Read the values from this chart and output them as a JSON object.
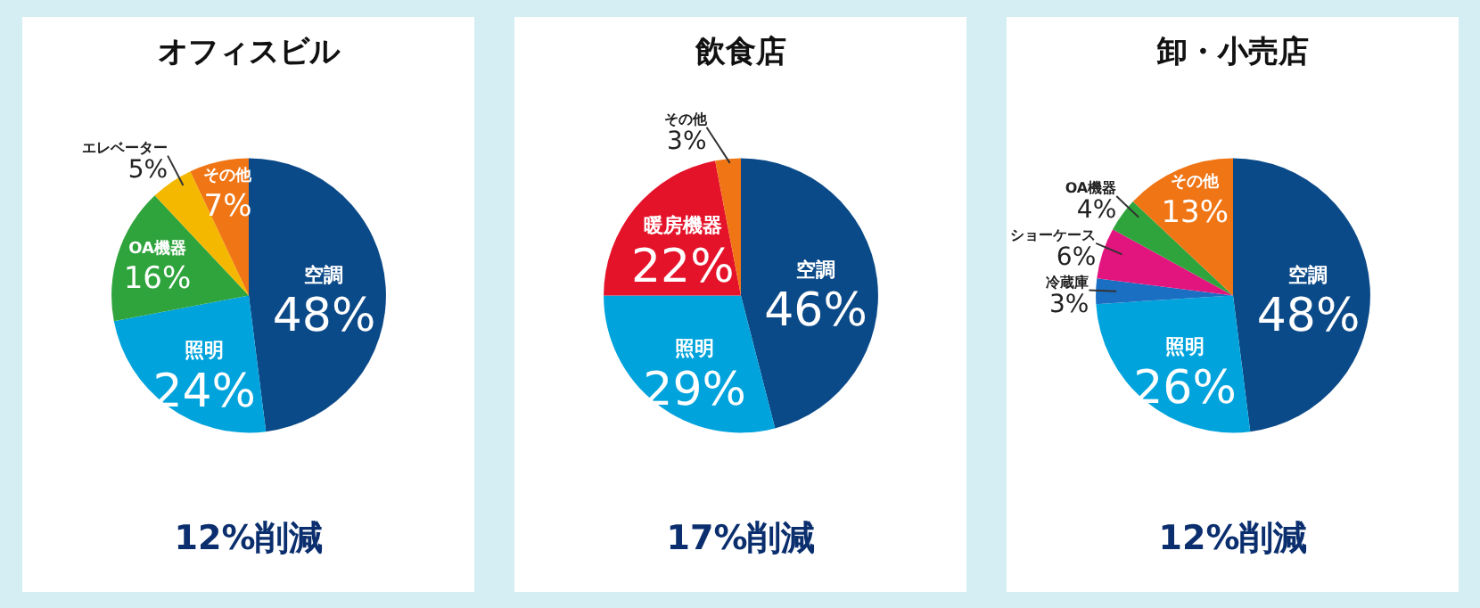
{
  "chart_data": [
    {
      "type": "pie",
      "title": "オフィスビル",
      "categories": [
        "空調",
        "照明",
        "OA機器",
        "エレベーター",
        "その他"
      ],
      "values": [
        48,
        24,
        16,
        5,
        7
      ],
      "colors": [
        "#0b4a88",
        "#00a3dc",
        "#2fa43c",
        "#f5b800",
        "#f07515"
      ],
      "value_labels": [
        "48%",
        "24%",
        "16%",
        "5%",
        "7%"
      ],
      "annotations": [
        "12%削減"
      ]
    },
    {
      "type": "pie",
      "title": "飲食店",
      "categories": [
        "空調",
        "照明",
        "暖房機器",
        "その他"
      ],
      "values": [
        46,
        29,
        22,
        3
      ],
      "colors": [
        "#0b4a88",
        "#00a3dc",
        "#e5132a",
        "#f07515"
      ],
      "value_labels": [
        "46%",
        "29%",
        "22%",
        "3%"
      ],
      "annotations": [
        "17%削減"
      ]
    },
    {
      "type": "pie",
      "title": "卸・小売店",
      "categories": [
        "空調",
        "照明",
        "冷蔵庫",
        "ショーケース",
        "OA機器",
        "その他"
      ],
      "values": [
        48,
        26,
        3,
        6,
        4,
        13
      ],
      "colors": [
        "#0b4a88",
        "#00a3dc",
        "#1b6fc2",
        "#e2157f",
        "#2fa43c",
        "#f07515"
      ],
      "value_labels": [
        "48%",
        "26%",
        "3%",
        "6%",
        "4%",
        "13%"
      ],
      "annotations": [
        "12%削減"
      ]
    }
  ]
}
